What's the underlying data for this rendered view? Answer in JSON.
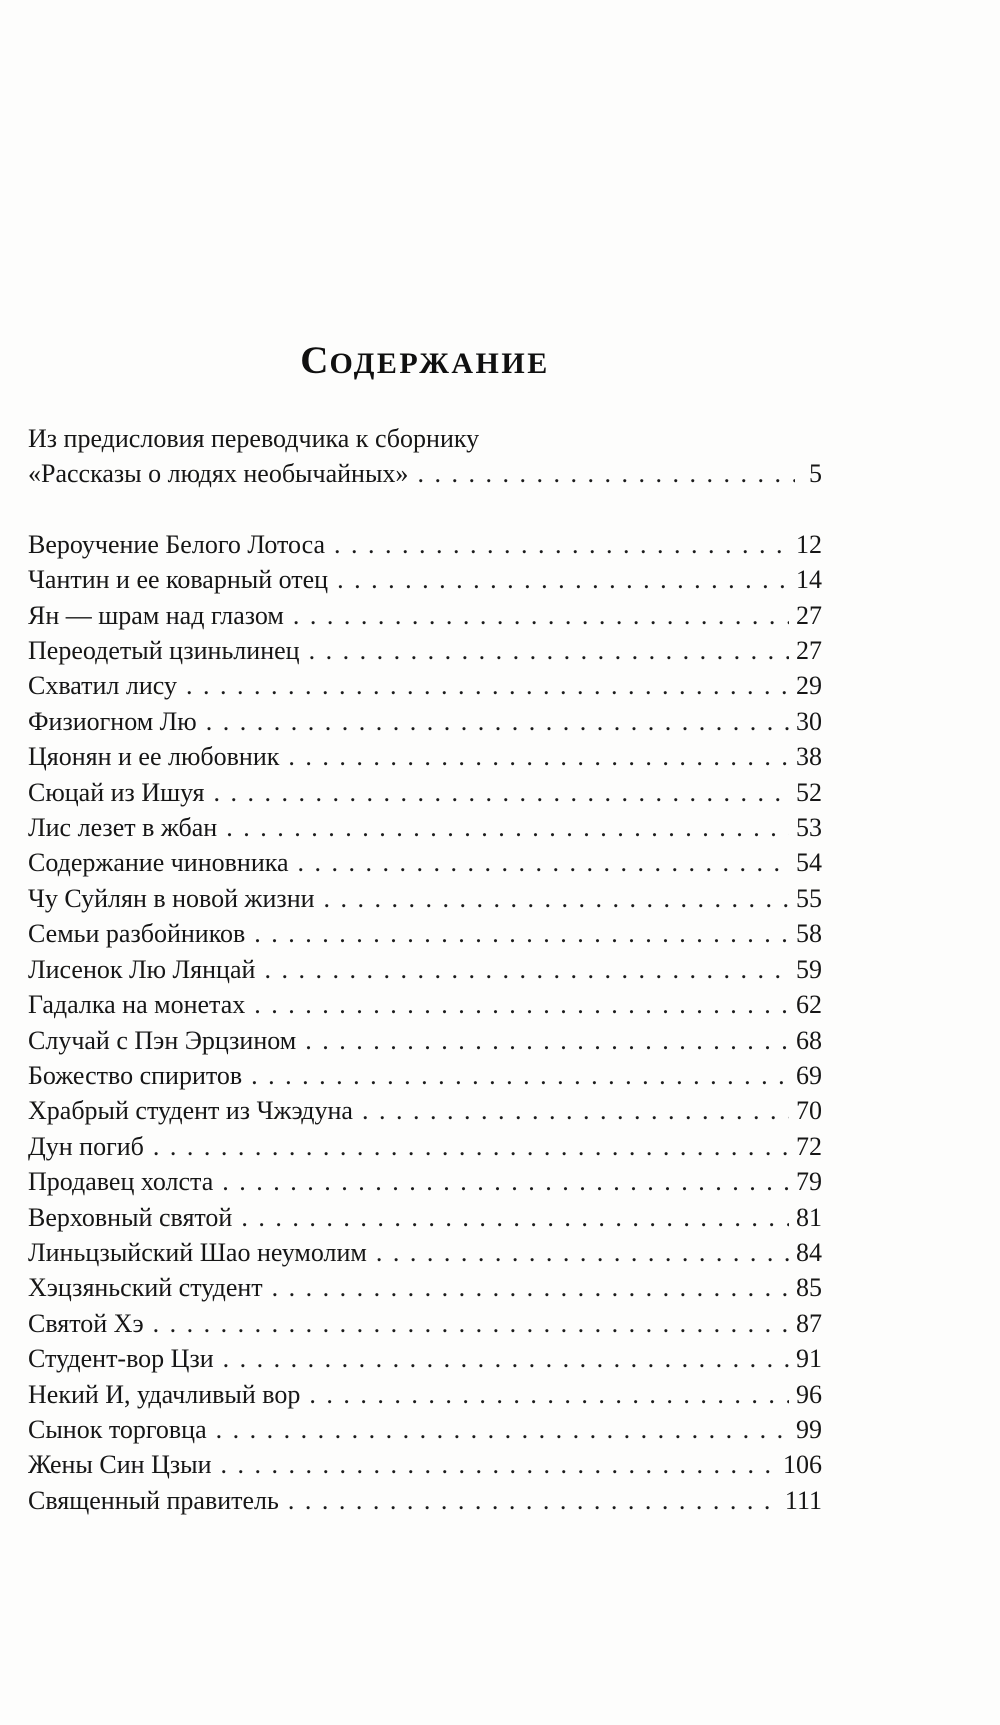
{
  "page_title": "СОДЕРЖАНИЕ",
  "toc": {
    "preface": {
      "line1": "Из предисловия переводчика к сборнику",
      "line2": "«Рассказы о людях необычайных»",
      "page": "5"
    },
    "entries": [
      {
        "title": "Вероучение Белого Лотоса",
        "page": "12"
      },
      {
        "title": "Чантин и ее коварный отец",
        "page": "14"
      },
      {
        "title": "Ян — шрам над глазом",
        "page": "27"
      },
      {
        "title": "Переодетый цзиньлинец",
        "page": "27"
      },
      {
        "title": "Схватил лису",
        "page": "29"
      },
      {
        "title": "Физиогном Лю",
        "page": "30"
      },
      {
        "title": "Цяонян и ее любовник",
        "page": "38"
      },
      {
        "title": "Сюцай из Ишуя",
        "page": "52"
      },
      {
        "title": "Лис лезет в жбан",
        "page": "53"
      },
      {
        "title": "Содержание чиновника",
        "page": "54"
      },
      {
        "title": "Чу Суйлян в новой жизни",
        "page": "55"
      },
      {
        "title": "Семьи разбойников",
        "page": "58"
      },
      {
        "title": "Лисенок Лю Лянцай",
        "page": "59"
      },
      {
        "title": "Гадалка на монетах",
        "page": "62"
      },
      {
        "title": "Случай с Пэн Эрцзином",
        "page": "68"
      },
      {
        "title": "Божество спиритов",
        "page": "69"
      },
      {
        "title": "Храбрый студент из Чжэдуна",
        "page": "70"
      },
      {
        "title": "Дун погиб",
        "page": "72"
      },
      {
        "title": "Продавец холста",
        "page": "79"
      },
      {
        "title": "Верховный святой",
        "page": "81"
      },
      {
        "title": "Линьцзыйский Шао неумолим",
        "page": "84"
      },
      {
        "title": "Хэцзяньский студент",
        "page": "85"
      },
      {
        "title": "Святой Хэ",
        "page": "87"
      },
      {
        "title": "Студент-вор Цзи",
        "page": "91"
      },
      {
        "title": "Некий И, удачливый вор",
        "page": "96"
      },
      {
        "title": "Сынок торговца",
        "page": "99"
      },
      {
        "title": "Жены Син Цзыи",
        "page": "106"
      },
      {
        "title": "Священный правитель",
        "page": "111"
      }
    ]
  }
}
